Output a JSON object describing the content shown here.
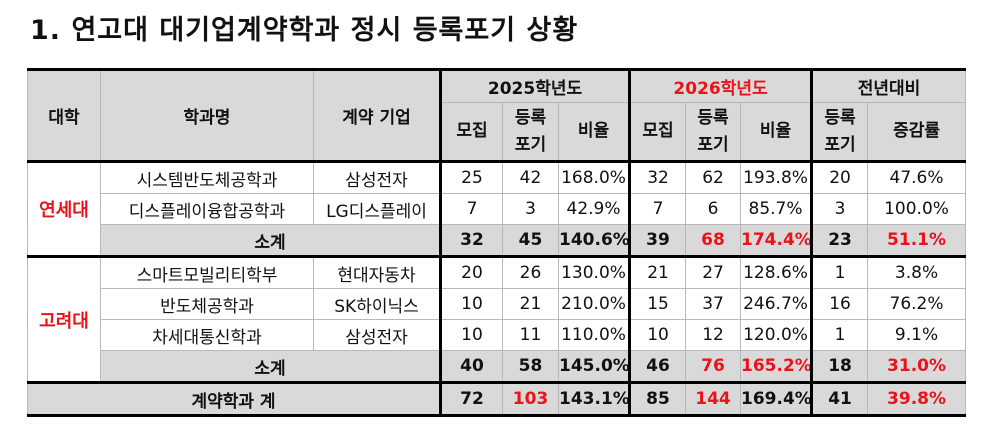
{
  "title": "1. 연고대 대기업계약학과 정시 등록포기 상황",
  "header": {
    "university": "대학",
    "department": "학과명",
    "company": "계약 기업",
    "year2025": "2025학년도",
    "year2026": "2026학년도",
    "yoy": "전년대비",
    "recruit": "모집",
    "withdraw": "등록\n포기",
    "ratio": "비율",
    "change_rate": "증감률"
  },
  "groups": [
    {
      "university": "연세대",
      "rows": [
        {
          "dept": "시스템반도체공학과",
          "company": "삼성전자",
          "values": [
            "25",
            "42",
            "168.0%",
            "32",
            "62",
            "193.8%",
            "20",
            "47.6%"
          ]
        },
        {
          "dept": "디스플레이융합공학과",
          "company": "LG디스플레이",
          "values": [
            "7",
            "3",
            "42.9%",
            "7",
            "6",
            "85.7%",
            "3",
            "100.0%"
          ]
        }
      ],
      "subtotal": {
        "label": "소계",
        "values": [
          "32",
          "45",
          "140.6%",
          "39",
          "68",
          "174.4%",
          "23",
          "51.1%"
        ],
        "red": [
          4,
          5,
          7
        ]
      }
    },
    {
      "university": "고려대",
      "rows": [
        {
          "dept": "스마트모빌리티학부",
          "company": "현대자동차",
          "values": [
            "20",
            "26",
            "130.0%",
            "21",
            "27",
            "128.6%",
            "1",
            "3.8%"
          ]
        },
        {
          "dept": "반도체공학과",
          "company": "SK하이닉스",
          "values": [
            "10",
            "21",
            "210.0%",
            "15",
            "37",
            "246.7%",
            "16",
            "76.2%"
          ]
        },
        {
          "dept": "차세대통신학과",
          "company": "삼성전자",
          "values": [
            "10",
            "11",
            "110.0%",
            "10",
            "12",
            "120.0%",
            "1",
            "9.1%"
          ]
        }
      ],
      "subtotal": {
        "label": "소계",
        "values": [
          "40",
          "58",
          "145.0%",
          "46",
          "76",
          "165.2%",
          "18",
          "31.0%"
        ],
        "red": [
          4,
          5,
          7
        ]
      }
    }
  ],
  "total": {
    "label": "계약학과 계",
    "values": [
      "72",
      "103",
      "143.1%",
      "85",
      "144",
      "169.4%",
      "41",
      "39.8%"
    ],
    "red": [
      1,
      4,
      7
    ]
  },
  "colors": {
    "red": "#e8141b",
    "header_gray": "#d9d9d9"
  }
}
